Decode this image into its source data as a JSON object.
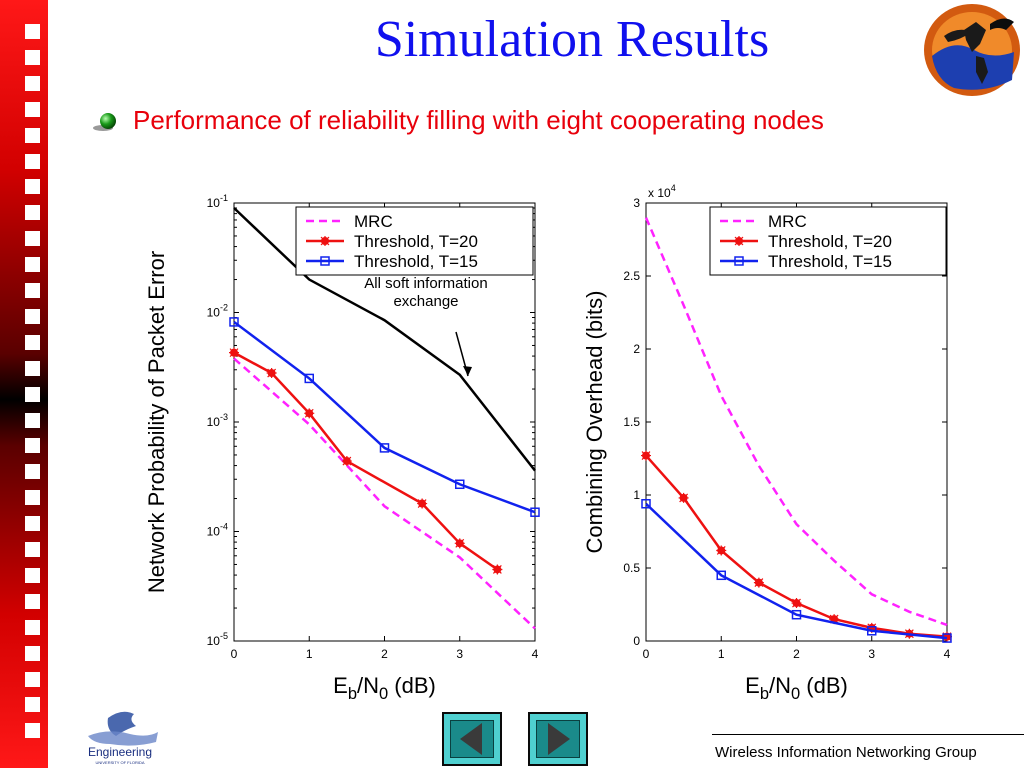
{
  "slide": {
    "title": "Simulation Results",
    "subtitle": "Performance of  reliability filling with eight cooperating nodes",
    "footer": "Wireless Information Networking Group",
    "accent_title": "#1010ee",
    "accent_subtitle": "#e8000b"
  },
  "navigation": {
    "prev_icon": "triangle-left-icon",
    "next_icon": "triangle-right-icon"
  },
  "logos": {
    "engineering_text": "Engineering",
    "engineering_subtext": "UNIVERSITY OF FLORIDA"
  },
  "chart_data": [
    {
      "type": "line",
      "xlabel": "E_b/N_0 (dB)",
      "ylabel": "Network Probability of Packet Error",
      "yscale": "log",
      "xlim": [
        0,
        4
      ],
      "ylim": [
        1e-05,
        0.1
      ],
      "xticks": [
        "0",
        "1",
        "2",
        "3",
        "4"
      ],
      "yticks": [
        "10^-1",
        "10^-2",
        "10^-3",
        "10^-4",
        "10^-5"
      ],
      "legend": "top-right",
      "annotation": "All soft information exchange",
      "series": [
        {
          "name": "MRC",
          "color": "#ff22ff",
          "style": "dashed",
          "x": [
            0,
            1,
            2,
            3,
            4
          ],
          "y": [
            0.0038,
            0.00095,
            0.00017,
            5.8e-05,
            1.3e-05
          ]
        },
        {
          "name": "Threshold, T=20",
          "color": "#ee1111",
          "style": "solid",
          "marker": "star",
          "x": [
            0,
            0.5,
            1,
            1.5,
            2.5,
            3,
            3.5
          ],
          "y": [
            0.0043,
            0.0028,
            0.0012,
            0.00044,
            0.00018,
            7.8e-05,
            4.5e-05
          ]
        },
        {
          "name": "Threshold, T=15",
          "color": "#1122ee",
          "style": "solid",
          "marker": "square",
          "x": [
            0,
            1,
            2,
            3,
            4
          ],
          "y": [
            0.0082,
            0.0025,
            0.00058,
            0.00027,
            0.00015
          ]
        },
        {
          "name": "",
          "color": "#000000",
          "style": "solid",
          "x": [
            0,
            1,
            2,
            3,
            4
          ],
          "y": [
            0.09,
            0.02,
            0.0085,
            0.0027,
            0.00036
          ]
        }
      ]
    },
    {
      "type": "line",
      "xlabel": "E_b/N_0 (dB)",
      "ylabel": "Combining Overhead (bits)",
      "scale_note": "x 10^4",
      "xlim": [
        0,
        4
      ],
      "ylim": [
        0,
        3
      ],
      "xticks": [
        "0",
        "1",
        "2",
        "3",
        "4"
      ],
      "yticks": [
        "0",
        "0.5",
        "1",
        "1.5",
        "2",
        "2.5",
        "3"
      ],
      "legend": "top-right",
      "series": [
        {
          "name": "MRC",
          "color": "#ff22ff",
          "style": "dashed",
          "x": [
            0,
            0.5,
            1,
            1.5,
            2,
            2.5,
            3,
            3.5,
            4
          ],
          "y": [
            2.9,
            2.3,
            1.68,
            1.2,
            0.8,
            0.55,
            0.32,
            0.2,
            0.11
          ]
        },
        {
          "name": "Threshold, T=20",
          "color": "#ee1111",
          "style": "solid",
          "marker": "star",
          "x": [
            0,
            0.5,
            1,
            1.5,
            2,
            2.5,
            3,
            3.5,
            4
          ],
          "y": [
            1.27,
            0.98,
            0.62,
            0.4,
            0.26,
            0.15,
            0.09,
            0.05,
            0.03
          ]
        },
        {
          "name": "Threshold, T=15",
          "color": "#1122ee",
          "style": "solid",
          "marker": "square",
          "x": [
            0,
            1,
            2,
            3,
            4
          ],
          "y": [
            0.94,
            0.45,
            0.18,
            0.07,
            0.02
          ]
        }
      ]
    }
  ]
}
